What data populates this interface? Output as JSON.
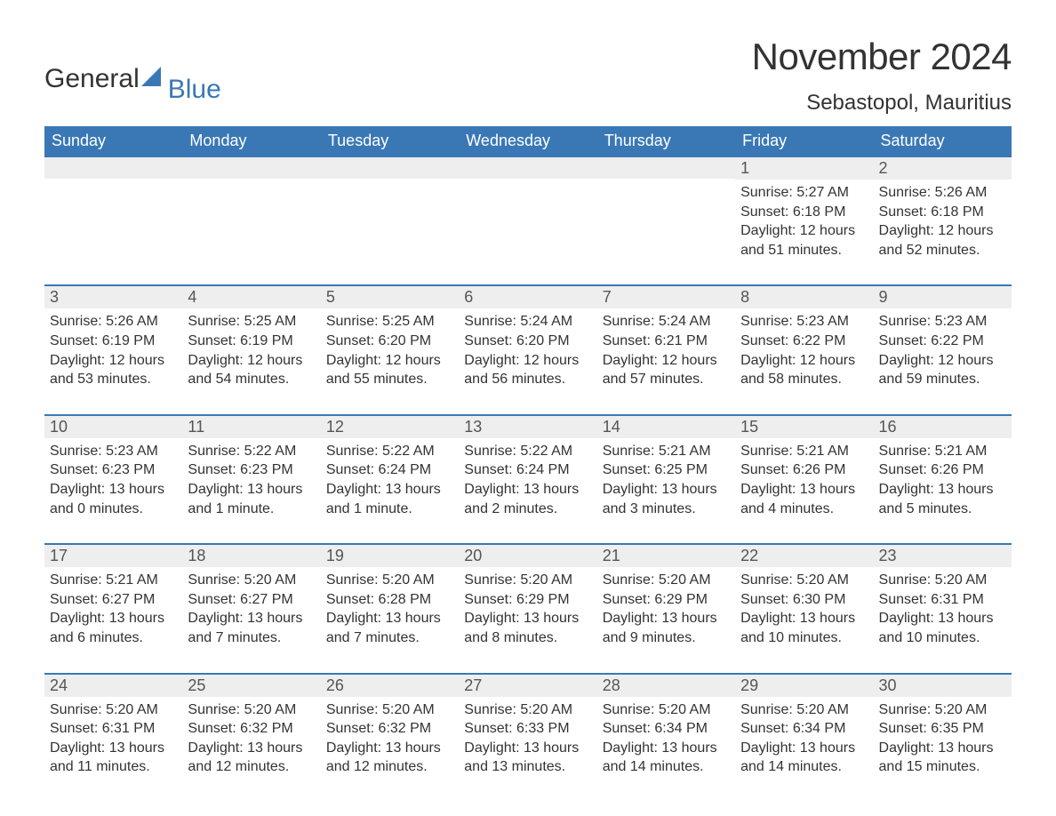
{
  "logo": {
    "text1": "General",
    "text2": "Blue",
    "icon_color": "#3a78b5"
  },
  "title": "November 2024",
  "location": "Sebastopol, Mauritius",
  "colors": {
    "header_bg": "#3a78b5",
    "header_text": "#ffffff",
    "daynum_bg": "#eeeeee",
    "row_border": "#3a78b5",
    "body_text": "#333333",
    "background": "#ffffff"
  },
  "typography": {
    "title_fontsize": 42,
    "location_fontsize": 24,
    "dayhead_fontsize": 18,
    "daynum_fontsize": 18,
    "content_fontsize": 16,
    "font_family": "Arial"
  },
  "day_headers": [
    "Sunday",
    "Monday",
    "Tuesday",
    "Wednesday",
    "Thursday",
    "Friday",
    "Saturday"
  ],
  "weeks": [
    [
      {
        "empty": true
      },
      {
        "empty": true
      },
      {
        "empty": true
      },
      {
        "empty": true
      },
      {
        "empty": true
      },
      {
        "day": "1",
        "sunrise": "Sunrise: 5:27 AM",
        "sunset": "Sunset: 6:18 PM",
        "daylight": "Daylight: 12 hours and 51 minutes."
      },
      {
        "day": "2",
        "sunrise": "Sunrise: 5:26 AM",
        "sunset": "Sunset: 6:18 PM",
        "daylight": "Daylight: 12 hours and 52 minutes."
      }
    ],
    [
      {
        "day": "3",
        "sunrise": "Sunrise: 5:26 AM",
        "sunset": "Sunset: 6:19 PM",
        "daylight": "Daylight: 12 hours and 53 minutes."
      },
      {
        "day": "4",
        "sunrise": "Sunrise: 5:25 AM",
        "sunset": "Sunset: 6:19 PM",
        "daylight": "Daylight: 12 hours and 54 minutes."
      },
      {
        "day": "5",
        "sunrise": "Sunrise: 5:25 AM",
        "sunset": "Sunset: 6:20 PM",
        "daylight": "Daylight: 12 hours and 55 minutes."
      },
      {
        "day": "6",
        "sunrise": "Sunrise: 5:24 AM",
        "sunset": "Sunset: 6:20 PM",
        "daylight": "Daylight: 12 hours and 56 minutes."
      },
      {
        "day": "7",
        "sunrise": "Sunrise: 5:24 AM",
        "sunset": "Sunset: 6:21 PM",
        "daylight": "Daylight: 12 hours and 57 minutes."
      },
      {
        "day": "8",
        "sunrise": "Sunrise: 5:23 AM",
        "sunset": "Sunset: 6:22 PM",
        "daylight": "Daylight: 12 hours and 58 minutes."
      },
      {
        "day": "9",
        "sunrise": "Sunrise: 5:23 AM",
        "sunset": "Sunset: 6:22 PM",
        "daylight": "Daylight: 12 hours and 59 minutes."
      }
    ],
    [
      {
        "day": "10",
        "sunrise": "Sunrise: 5:23 AM",
        "sunset": "Sunset: 6:23 PM",
        "daylight": "Daylight: 13 hours and 0 minutes."
      },
      {
        "day": "11",
        "sunrise": "Sunrise: 5:22 AM",
        "sunset": "Sunset: 6:23 PM",
        "daylight": "Daylight: 13 hours and 1 minute."
      },
      {
        "day": "12",
        "sunrise": "Sunrise: 5:22 AM",
        "sunset": "Sunset: 6:24 PM",
        "daylight": "Daylight: 13 hours and 1 minute."
      },
      {
        "day": "13",
        "sunrise": "Sunrise: 5:22 AM",
        "sunset": "Sunset: 6:24 PM",
        "daylight": "Daylight: 13 hours and 2 minutes."
      },
      {
        "day": "14",
        "sunrise": "Sunrise: 5:21 AM",
        "sunset": "Sunset: 6:25 PM",
        "daylight": "Daylight: 13 hours and 3 minutes."
      },
      {
        "day": "15",
        "sunrise": "Sunrise: 5:21 AM",
        "sunset": "Sunset: 6:26 PM",
        "daylight": "Daylight: 13 hours and 4 minutes."
      },
      {
        "day": "16",
        "sunrise": "Sunrise: 5:21 AM",
        "sunset": "Sunset: 6:26 PM",
        "daylight": "Daylight: 13 hours and 5 minutes."
      }
    ],
    [
      {
        "day": "17",
        "sunrise": "Sunrise: 5:21 AM",
        "sunset": "Sunset: 6:27 PM",
        "daylight": "Daylight: 13 hours and 6 minutes."
      },
      {
        "day": "18",
        "sunrise": "Sunrise: 5:20 AM",
        "sunset": "Sunset: 6:27 PM",
        "daylight": "Daylight: 13 hours and 7 minutes."
      },
      {
        "day": "19",
        "sunrise": "Sunrise: 5:20 AM",
        "sunset": "Sunset: 6:28 PM",
        "daylight": "Daylight: 13 hours and 7 minutes."
      },
      {
        "day": "20",
        "sunrise": "Sunrise: 5:20 AM",
        "sunset": "Sunset: 6:29 PM",
        "daylight": "Daylight: 13 hours and 8 minutes."
      },
      {
        "day": "21",
        "sunrise": "Sunrise: 5:20 AM",
        "sunset": "Sunset: 6:29 PM",
        "daylight": "Daylight: 13 hours and 9 minutes."
      },
      {
        "day": "22",
        "sunrise": "Sunrise: 5:20 AM",
        "sunset": "Sunset: 6:30 PM",
        "daylight": "Daylight: 13 hours and 10 minutes."
      },
      {
        "day": "23",
        "sunrise": "Sunrise: 5:20 AM",
        "sunset": "Sunset: 6:31 PM",
        "daylight": "Daylight: 13 hours and 10 minutes."
      }
    ],
    [
      {
        "day": "24",
        "sunrise": "Sunrise: 5:20 AM",
        "sunset": "Sunset: 6:31 PM",
        "daylight": "Daylight: 13 hours and 11 minutes."
      },
      {
        "day": "25",
        "sunrise": "Sunrise: 5:20 AM",
        "sunset": "Sunset: 6:32 PM",
        "daylight": "Daylight: 13 hours and 12 minutes."
      },
      {
        "day": "26",
        "sunrise": "Sunrise: 5:20 AM",
        "sunset": "Sunset: 6:32 PM",
        "daylight": "Daylight: 13 hours and 12 minutes."
      },
      {
        "day": "27",
        "sunrise": "Sunrise: 5:20 AM",
        "sunset": "Sunset: 6:33 PM",
        "daylight": "Daylight: 13 hours and 13 minutes."
      },
      {
        "day": "28",
        "sunrise": "Sunrise: 5:20 AM",
        "sunset": "Sunset: 6:34 PM",
        "daylight": "Daylight: 13 hours and 14 minutes."
      },
      {
        "day": "29",
        "sunrise": "Sunrise: 5:20 AM",
        "sunset": "Sunset: 6:34 PM",
        "daylight": "Daylight: 13 hours and 14 minutes."
      },
      {
        "day": "30",
        "sunrise": "Sunrise: 5:20 AM",
        "sunset": "Sunset: 6:35 PM",
        "daylight": "Daylight: 13 hours and 15 minutes."
      }
    ]
  ]
}
